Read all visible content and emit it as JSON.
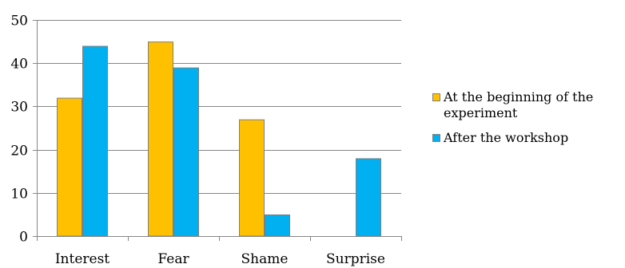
{
  "chart_data": {
    "type": "bar",
    "categories": [
      "Interest",
      "Fear",
      "Shame",
      "Surprise"
    ],
    "series": [
      {
        "name": "At the beginning of the experiment",
        "values": [
          32,
          45,
          27,
          0
        ],
        "color": "#FFC000"
      },
      {
        "name": "After the workshop",
        "values": [
          44,
          39,
          5,
          18
        ],
        "color": "#00B0F0"
      }
    ],
    "y_ticks": [
      "0",
      "10",
      "20",
      "30",
      "40",
      "50"
    ],
    "ylim": [
      0,
      50
    ],
    "title": "",
    "xlabel": "",
    "ylabel": "",
    "grid": true,
    "legend_position": "right",
    "colors": {
      "bar_border": "#7F7F7F",
      "grid": "#868686",
      "axis": "#868686"
    }
  }
}
